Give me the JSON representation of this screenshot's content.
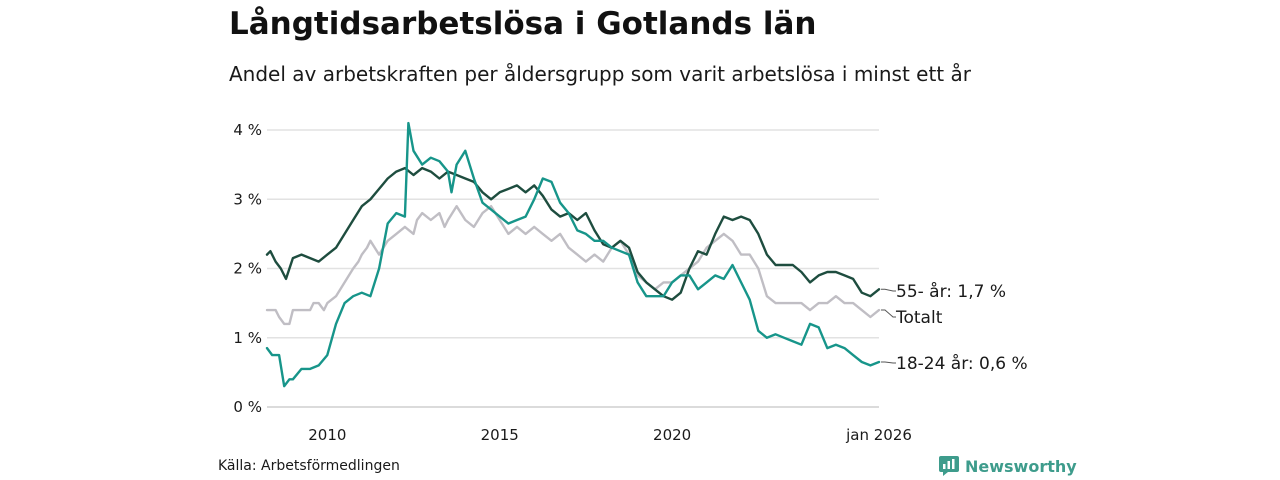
{
  "title": "Långtidsarbetslösa i Gotlands län",
  "subtitle": "Andel av arbetskraften per åldersgrupp som varit arbetslösa i minst ett år",
  "source": "Källa: Arbetsförmedlingen",
  "brand": {
    "name": "Newsworthy",
    "logo_icon": "bar-chart-icon",
    "color": "#3e9c8c"
  },
  "chart_data": {
    "type": "line",
    "title": "Långtidsarbetslösa i Gotlands län",
    "xlabel": "",
    "ylabel": "",
    "xlim": [
      2008.25,
      2026.0
    ],
    "ylim": [
      0,
      4
    ],
    "y_ticks": [
      0,
      1,
      2,
      3,
      4
    ],
    "y_tick_labels": [
      "0 %",
      "1 %",
      "2 %",
      "3 %",
      "4 %"
    ],
    "x_ticks": [
      2010,
      2015,
      2020,
      2026.0
    ],
    "x_tick_labels": [
      "2010",
      "2015",
      "2020",
      "jan 2026"
    ],
    "grid": true,
    "series": [
      {
        "key": "totalt",
        "name": "Totalt",
        "label": "Totalt",
        "color": "#c0bec4",
        "points": [
          [
            2008.25,
            1.4
          ],
          [
            2008.5,
            1.4
          ],
          [
            2008.6,
            1.3
          ],
          [
            2008.75,
            1.2
          ],
          [
            2008.9,
            1.2
          ],
          [
            2009.0,
            1.4
          ],
          [
            2009.3,
            1.4
          ],
          [
            2009.5,
            1.4
          ],
          [
            2009.6,
            1.5
          ],
          [
            2009.75,
            1.5
          ],
          [
            2009.9,
            1.4
          ],
          [
            2010.0,
            1.5
          ],
          [
            2010.25,
            1.6
          ],
          [
            2010.5,
            1.8
          ],
          [
            2010.75,
            2.0
          ],
          [
            2010.9,
            2.1
          ],
          [
            2011.0,
            2.2
          ],
          [
            2011.15,
            2.3
          ],
          [
            2011.25,
            2.4
          ],
          [
            2011.5,
            2.2
          ],
          [
            2011.75,
            2.4
          ],
          [
            2012.0,
            2.5
          ],
          [
            2012.25,
            2.6
          ],
          [
            2012.5,
            2.5
          ],
          [
            2012.6,
            2.7
          ],
          [
            2012.75,
            2.8
          ],
          [
            2013.0,
            2.7
          ],
          [
            2013.25,
            2.8
          ],
          [
            2013.4,
            2.6
          ],
          [
            2013.5,
            2.7
          ],
          [
            2013.75,
            2.9
          ],
          [
            2014.0,
            2.7
          ],
          [
            2014.25,
            2.6
          ],
          [
            2014.5,
            2.8
          ],
          [
            2014.75,
            2.9
          ],
          [
            2015.0,
            2.7
          ],
          [
            2015.25,
            2.5
          ],
          [
            2015.5,
            2.6
          ],
          [
            2015.75,
            2.5
          ],
          [
            2016.0,
            2.6
          ],
          [
            2016.25,
            2.5
          ],
          [
            2016.5,
            2.4
          ],
          [
            2016.75,
            2.5
          ],
          [
            2017.0,
            2.3
          ],
          [
            2017.25,
            2.2
          ],
          [
            2017.5,
            2.1
          ],
          [
            2017.75,
            2.2
          ],
          [
            2018.0,
            2.1
          ],
          [
            2018.25,
            2.3
          ],
          [
            2018.5,
            2.4
          ],
          [
            2018.75,
            2.2
          ],
          [
            2019.0,
            1.9
          ],
          [
            2019.25,
            1.8
          ],
          [
            2019.5,
            1.7
          ],
          [
            2019.75,
            1.8
          ],
          [
            2020.0,
            1.8
          ],
          [
            2020.25,
            1.9
          ],
          [
            2020.5,
            2.0
          ],
          [
            2020.75,
            2.1
          ],
          [
            2021.0,
            2.3
          ],
          [
            2021.25,
            2.4
          ],
          [
            2021.5,
            2.5
          ],
          [
            2021.75,
            2.4
          ],
          [
            2022.0,
            2.2
          ],
          [
            2022.25,
            2.2
          ],
          [
            2022.5,
            2.0
          ],
          [
            2022.75,
            1.6
          ],
          [
            2023.0,
            1.5
          ],
          [
            2023.5,
            1.5
          ],
          [
            2023.75,
            1.5
          ],
          [
            2024.0,
            1.4
          ],
          [
            2024.25,
            1.5
          ],
          [
            2024.5,
            1.5
          ],
          [
            2024.75,
            1.6
          ],
          [
            2025.0,
            1.5
          ],
          [
            2025.25,
            1.5
          ],
          [
            2025.5,
            1.4
          ],
          [
            2025.75,
            1.3
          ],
          [
            2026.0,
            1.4
          ]
        ]
      },
      {
        "key": "age55",
        "name": "55- år",
        "label": "55- år: 1,7 %",
        "color": "#1e4d3f",
        "points": [
          [
            2008.25,
            2.2
          ],
          [
            2008.35,
            2.25
          ],
          [
            2008.5,
            2.1
          ],
          [
            2008.65,
            2.0
          ],
          [
            2008.8,
            1.85
          ],
          [
            2009.0,
            2.15
          ],
          [
            2009.25,
            2.2
          ],
          [
            2009.5,
            2.15
          ],
          [
            2009.75,
            2.1
          ],
          [
            2010.0,
            2.2
          ],
          [
            2010.25,
            2.3
          ],
          [
            2010.5,
            2.5
          ],
          [
            2010.75,
            2.7
          ],
          [
            2011.0,
            2.9
          ],
          [
            2011.25,
            3.0
          ],
          [
            2011.5,
            3.15
          ],
          [
            2011.75,
            3.3
          ],
          [
            2012.0,
            3.4
          ],
          [
            2012.25,
            3.45
          ],
          [
            2012.5,
            3.35
          ],
          [
            2012.75,
            3.45
          ],
          [
            2013.0,
            3.4
          ],
          [
            2013.25,
            3.3
          ],
          [
            2013.5,
            3.4
          ],
          [
            2013.75,
            3.35
          ],
          [
            2014.0,
            3.3
          ],
          [
            2014.25,
            3.25
          ],
          [
            2014.5,
            3.1
          ],
          [
            2014.75,
            3.0
          ],
          [
            2015.0,
            3.1
          ],
          [
            2015.25,
            3.15
          ],
          [
            2015.5,
            3.2
          ],
          [
            2015.75,
            3.1
          ],
          [
            2016.0,
            3.2
          ],
          [
            2016.25,
            3.05
          ],
          [
            2016.5,
            2.85
          ],
          [
            2016.75,
            2.75
          ],
          [
            2017.0,
            2.8
          ],
          [
            2017.25,
            2.7
          ],
          [
            2017.5,
            2.8
          ],
          [
            2017.75,
            2.55
          ],
          [
            2018.0,
            2.35
          ],
          [
            2018.25,
            2.3
          ],
          [
            2018.5,
            2.4
          ],
          [
            2018.75,
            2.3
          ],
          [
            2019.0,
            1.95
          ],
          [
            2019.25,
            1.8
          ],
          [
            2019.5,
            1.7
          ],
          [
            2019.75,
            1.6
          ],
          [
            2020.0,
            1.55
          ],
          [
            2020.25,
            1.65
          ],
          [
            2020.5,
            2.0
          ],
          [
            2020.75,
            2.25
          ],
          [
            2021.0,
            2.2
          ],
          [
            2021.25,
            2.5
          ],
          [
            2021.5,
            2.75
          ],
          [
            2021.75,
            2.7
          ],
          [
            2022.0,
            2.75
          ],
          [
            2022.25,
            2.7
          ],
          [
            2022.5,
            2.5
          ],
          [
            2022.75,
            2.2
          ],
          [
            2023.0,
            2.05
          ],
          [
            2023.25,
            2.05
          ],
          [
            2023.5,
            2.05
          ],
          [
            2023.75,
            1.95
          ],
          [
            2024.0,
            1.8
          ],
          [
            2024.25,
            1.9
          ],
          [
            2024.5,
            1.95
          ],
          [
            2024.75,
            1.95
          ],
          [
            2025.0,
            1.9
          ],
          [
            2025.25,
            1.85
          ],
          [
            2025.5,
            1.65
          ],
          [
            2025.75,
            1.6
          ],
          [
            2026.0,
            1.7
          ]
        ]
      },
      {
        "key": "age1824",
        "name": "18-24 år",
        "label": "18-24 år: 0,6 %",
        "color": "#17958a",
        "points": [
          [
            2008.25,
            0.85
          ],
          [
            2008.4,
            0.75
          ],
          [
            2008.6,
            0.75
          ],
          [
            2008.75,
            0.3
          ],
          [
            2008.9,
            0.4
          ],
          [
            2009.0,
            0.4
          ],
          [
            2009.25,
            0.55
          ],
          [
            2009.5,
            0.55
          ],
          [
            2009.75,
            0.6
          ],
          [
            2010.0,
            0.75
          ],
          [
            2010.25,
            1.2
          ],
          [
            2010.5,
            1.5
          ],
          [
            2010.75,
            1.6
          ],
          [
            2011.0,
            1.65
          ],
          [
            2011.25,
            1.6
          ],
          [
            2011.5,
            2.0
          ],
          [
            2011.75,
            2.65
          ],
          [
            2012.0,
            2.8
          ],
          [
            2012.25,
            2.75
          ],
          [
            2012.35,
            4.1
          ],
          [
            2012.5,
            3.7
          ],
          [
            2012.75,
            3.5
          ],
          [
            2013.0,
            3.6
          ],
          [
            2013.25,
            3.55
          ],
          [
            2013.5,
            3.4
          ],
          [
            2013.6,
            3.1
          ],
          [
            2013.75,
            3.5
          ],
          [
            2014.0,
            3.7
          ],
          [
            2014.25,
            3.3
          ],
          [
            2014.5,
            2.95
          ],
          [
            2014.75,
            2.85
          ],
          [
            2015.0,
            2.75
          ],
          [
            2015.25,
            2.65
          ],
          [
            2015.5,
            2.7
          ],
          [
            2015.75,
            2.75
          ],
          [
            2016.0,
            3.0
          ],
          [
            2016.25,
            3.3
          ],
          [
            2016.5,
            3.25
          ],
          [
            2016.75,
            2.95
          ],
          [
            2017.0,
            2.8
          ],
          [
            2017.25,
            2.55
          ],
          [
            2017.5,
            2.5
          ],
          [
            2017.75,
            2.4
          ],
          [
            2018.0,
            2.4
          ],
          [
            2018.25,
            2.3
          ],
          [
            2018.5,
            2.25
          ],
          [
            2018.75,
            2.2
          ],
          [
            2019.0,
            1.8
          ],
          [
            2019.25,
            1.6
          ],
          [
            2019.5,
            1.6
          ],
          [
            2019.75,
            1.6
          ],
          [
            2020.0,
            1.8
          ],
          [
            2020.25,
            1.9
          ],
          [
            2020.5,
            1.9
          ],
          [
            2020.75,
            1.7
          ],
          [
            2021.0,
            1.8
          ],
          [
            2021.25,
            1.9
          ],
          [
            2021.5,
            1.85
          ],
          [
            2021.75,
            2.05
          ],
          [
            2022.0,
            1.8
          ],
          [
            2022.25,
            1.55
          ],
          [
            2022.5,
            1.1
          ],
          [
            2022.75,
            1.0
          ],
          [
            2023.0,
            1.05
          ],
          [
            2023.25,
            1.0
          ],
          [
            2023.5,
            0.95
          ],
          [
            2023.75,
            0.9
          ],
          [
            2024.0,
            1.2
          ],
          [
            2024.25,
            1.15
          ],
          [
            2024.5,
            0.85
          ],
          [
            2024.75,
            0.9
          ],
          [
            2025.0,
            0.85
          ],
          [
            2025.25,
            0.75
          ],
          [
            2025.5,
            0.65
          ],
          [
            2025.75,
            0.6
          ],
          [
            2026.0,
            0.65
          ]
        ]
      }
    ],
    "series_labels_order": [
      "age55",
      "totalt",
      "age1824"
    ]
  }
}
